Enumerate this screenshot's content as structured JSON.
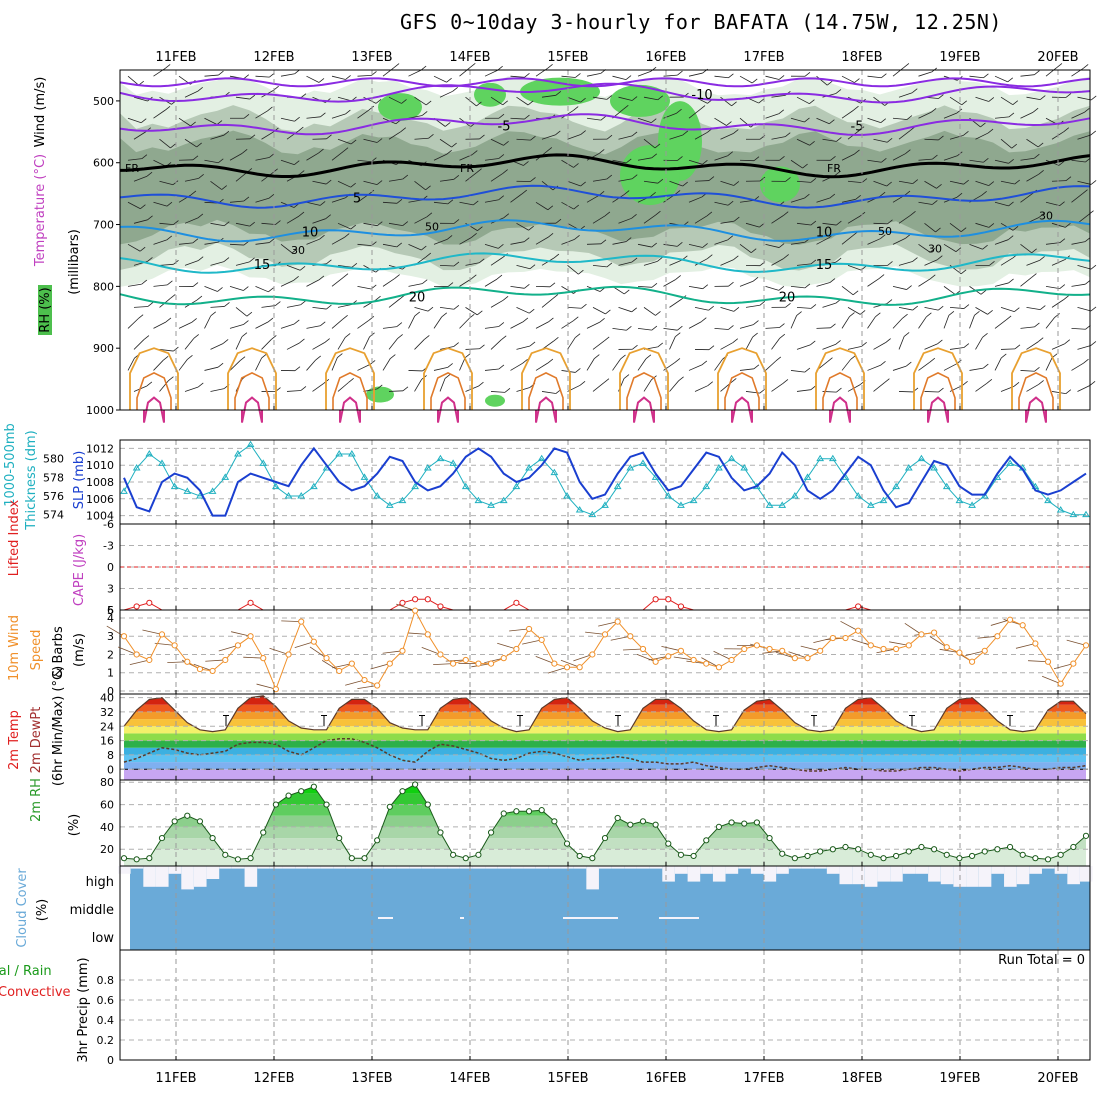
{
  "title": "GFS 0~10day 3-hourly for BAFATA (14.75W, 12.25N)",
  "dates": [
    "11FEB",
    "12FEB",
    "13FEB",
    "14FEB",
    "15FEB",
    "16FEB",
    "17FEB",
    "18FEB",
    "19FEB",
    "20FEB"
  ],
  "colors": {
    "temp_purple": "#8a2be2",
    "temp_black": "#000000",
    "temp_blue": "#1f4fd8",
    "temp_sky": "#1e8fe0",
    "temp_cyan": "#1fb8c8",
    "temp_teal": "#12b08a",
    "rh_light": "#e3f0e3",
    "rh_mid": "#b6c9b6",
    "rh_dark": "#8fa88f",
    "rh_green": "#5fd35f",
    "slp": "#1a3fd0",
    "thickness": "#1fb0c0",
    "lifted": "#e02020",
    "wind10": "#f0902a",
    "rh2m": "#2a9a2a",
    "cloud": "#6aaad8",
    "cloud_gap": "#f5f3fa",
    "cape_orange": "#e8a030",
    "cape_magenta": "#d0308a"
  },
  "chart_data": [
    {
      "panel": "upper-air",
      "type": "contour",
      "ylabels": [
        "Wind (m/s)",
        "Temperature (°C)",
        "RH (%)",
        "(millibars)"
      ],
      "yticks": [
        "500",
        "600",
        "700",
        "800",
        "900",
        "1000"
      ],
      "ylim": [
        1000,
        450
      ],
      "isotherms": [
        {
          "label": "-10",
          "level": 487
        },
        {
          "label": "-5",
          "level": 538
        },
        {
          "label": "FR",
          "level": 605
        },
        {
          "label": "5",
          "level": 655
        },
        {
          "label": "10",
          "level": 710
        },
        {
          "label": "15",
          "level": 762
        },
        {
          "label": "20",
          "level": 815
        }
      ],
      "rh_labels": [
        "30",
        "50"
      ]
    },
    {
      "panel": "pressure",
      "type": "line",
      "ylabels": [
        "1000-500mb",
        "Thickness (dm)",
        "SLP (mb)"
      ],
      "yticks_left": [
        "574",
        "576",
        "578",
        "580"
      ],
      "yticks_right": [
        "1004",
        "1006",
        "1008",
        "1010",
        "1012"
      ],
      "ylim_slp": [
        1003,
        1013
      ],
      "series": [
        {
          "name": "SLP (mb)",
          "values": [
            1008.5,
            1005,
            1004.5,
            1008,
            1009,
            1008.5,
            1007,
            1004,
            1004,
            1008,
            1009,
            1008.5,
            1008,
            1007.5,
            1010,
            1012,
            1010,
            1008,
            1007,
            1007.5,
            1009,
            1011,
            1010.5,
            1008,
            1007,
            1007.5,
            1009,
            1011,
            1012,
            1011,
            1009,
            1008,
            1008.5,
            1010,
            1012,
            1011.5,
            1008,
            1006,
            1006.5,
            1009,
            1011,
            1011.5,
            1009,
            1007,
            1007.5,
            1009.5,
            1011.5,
            1011,
            1008.5,
            1007,
            1007.5,
            1009,
            1011.5,
            1010,
            1007,
            1006,
            1007,
            1009,
            1011,
            1010,
            1007,
            1005,
            1005.5,
            1008,
            1010.5,
            1010,
            1007.5,
            1006.5,
            1006.5,
            1009,
            1011,
            1009.5,
            1007,
            1006.5,
            1007,
            1008,
            1009
          ]
        },
        {
          "name": "Thickness (dm)",
          "values": [
            576.5,
            579,
            580.5,
            579.5,
            577,
            576.5,
            576,
            576.5,
            578,
            580.5,
            581.5,
            579.5,
            577,
            576,
            576,
            577,
            579,
            580.5,
            580.5,
            578,
            576,
            575,
            575.5,
            577,
            579,
            580,
            579.5,
            577,
            575.5,
            575,
            575.5,
            577,
            579,
            580,
            578.5,
            576,
            574.5,
            574,
            575,
            577,
            579,
            579.5,
            578,
            576,
            575,
            575.5,
            577,
            579,
            580,
            579,
            577,
            575,
            575,
            576,
            578,
            580,
            580,
            578,
            576,
            575,
            575.5,
            577,
            579,
            580,
            579,
            577,
            575.5,
            575,
            576,
            578,
            579.5,
            579,
            577,
            575.5,
            574.5,
            574,
            574
          ]
        }
      ]
    },
    {
      "panel": "stability",
      "type": "line",
      "ylabels": [
        "Lifted Index",
        "CAPE (J/kg)"
      ],
      "yticks": [
        "-6",
        "-3",
        "0",
        "3",
        "6"
      ],
      "ylim": [
        -6,
        6
      ],
      "cape_tick": "5",
      "series": [
        {
          "name": "Lifted Index",
          "values": [
            6,
            5.5,
            5,
            6,
            6,
            6,
            6,
            6,
            6,
            6,
            5,
            6,
            6,
            6,
            6,
            6,
            6,
            6,
            6,
            6,
            6,
            6,
            5,
            4.5,
            4.5,
            5.5,
            6,
            6,
            6,
            6,
            6,
            5,
            6,
            6,
            6,
            6,
            6,
            6,
            6,
            6,
            6,
            6,
            4.5,
            4.5,
            5.5,
            6,
            6,
            6,
            6,
            6,
            6,
            6,
            6,
            6,
            6,
            6,
            6,
            6,
            5.5,
            6,
            6,
            6,
            6,
            6,
            6,
            6,
            6,
            6,
            6,
            6,
            6,
            6,
            6,
            6,
            6,
            6,
            6
          ]
        }
      ]
    },
    {
      "panel": "wind10m",
      "type": "line",
      "ylabels": [
        "10m Wind",
        "Speed",
        "& Barbs",
        "(m/s)"
      ],
      "yticks": [
        "0",
        "1",
        "2",
        "3",
        "4"
      ],
      "ylim": [
        0,
        4.6
      ],
      "series": [
        {
          "name": "10m Wind Speed",
          "values": [
            3,
            2,
            1.7,
            3.1,
            2.5,
            1.6,
            1.2,
            1.1,
            1.7,
            2.5,
            3,
            1.8,
            0.1,
            2,
            3.8,
            2.7,
            1.8,
            1.1,
            1.5,
            0.6,
            0.3,
            1.5,
            2.2,
            4.4,
            3.1,
            2,
            1.5,
            1.7,
            1.5,
            1.5,
            1.8,
            2.3,
            3.4,
            2.8,
            1.5,
            1.3,
            1.3,
            2,
            3.1,
            3.8,
            3,
            2.3,
            1.6,
            1.9,
            2.2,
            1.7,
            1.5,
            1.3,
            1.7,
            2.3,
            2.5,
            2.3,
            2.2,
            1.8,
            1.8,
            2.2,
            2.9,
            2.9,
            3.3,
            2.5,
            2.3,
            2.3,
            2.5,
            3.1,
            3.2,
            2.4,
            2.1,
            1.6,
            2.2,
            3,
            3.9,
            3.6,
            2.6,
            1.6,
            0.4,
            1.5,
            2.5
          ]
        }
      ]
    },
    {
      "panel": "temperature2m",
      "type": "area",
      "ylabels": [
        "2m Temp",
        "2m DewPt",
        "(6hr Min/Max) (°C)"
      ],
      "yticks": [
        "0",
        "8",
        "16",
        "24",
        "32",
        "40"
      ],
      "ylim": [
        -6,
        42
      ],
      "series": [
        {
          "name": "2m Temp",
          "values": [
            24,
            33,
            39,
            40,
            33,
            26,
            22,
            21,
            22,
            34,
            40,
            41,
            35,
            27,
            23,
            22,
            22,
            34,
            39,
            39,
            34,
            26,
            23,
            22,
            22,
            34,
            39,
            40,
            34,
            27,
            23,
            21,
            22,
            34,
            39,
            40,
            34,
            27,
            23,
            21,
            22,
            34,
            39,
            39,
            34,
            27,
            22,
            21,
            22,
            33,
            38,
            39,
            33,
            26,
            22,
            21,
            22,
            34,
            39,
            40,
            34,
            27,
            23,
            21,
            22,
            34,
            39,
            40,
            34,
            27,
            22,
            21,
            22,
            33,
            38,
            38,
            31
          ]
        },
        {
          "name": "2m DewPt",
          "values": [
            4,
            6,
            9,
            12,
            11,
            9,
            8,
            9,
            10,
            14,
            15,
            15,
            14,
            10,
            8,
            12,
            16,
            17,
            17,
            15,
            12,
            8,
            5,
            4,
            10,
            14,
            13,
            11,
            9,
            6,
            5,
            6,
            9,
            10,
            9,
            7,
            5,
            6,
            6,
            7,
            6,
            4,
            4,
            3,
            3,
            4,
            2,
            1,
            0,
            0,
            1,
            2,
            1,
            0,
            -1,
            -1,
            0,
            1,
            0,
            0,
            -1,
            -1,
            0,
            1,
            1,
            0,
            -1,
            0,
            1,
            1,
            2,
            1,
            0,
            0,
            1,
            1,
            2
          ]
        }
      ]
    },
    {
      "panel": "rh2m",
      "type": "area",
      "ylabels": [
        "2m RH",
        "(%)"
      ],
      "yticks": [
        "20",
        "40",
        "60",
        "80"
      ],
      "ylim": [
        5,
        82
      ],
      "series": [
        {
          "name": "2m RH",
          "values": [
            12,
            11,
            12,
            30,
            45,
            50,
            45,
            30,
            15,
            11,
            12,
            35,
            60,
            68,
            72,
            76,
            60,
            30,
            12,
            12,
            28,
            58,
            72,
            78,
            60,
            35,
            15,
            12,
            15,
            35,
            52,
            54,
            54,
            55,
            45,
            25,
            14,
            12,
            30,
            48,
            42,
            45,
            42,
            25,
            15,
            14,
            28,
            40,
            44,
            43,
            44,
            30,
            16,
            12,
            14,
            18,
            20,
            22,
            20,
            15,
            12,
            14,
            18,
            22,
            20,
            15,
            12,
            14,
            18,
            20,
            22,
            15,
            12,
            11,
            15,
            22,
            32
          ]
        }
      ]
    },
    {
      "panel": "cloud",
      "type": "bar",
      "ylabels": [
        "Cloud Cover",
        "(%)"
      ],
      "levels": [
        "high",
        "middle",
        "low"
      ],
      "high_missing": [
        0.3,
        0.1,
        0.8,
        0.8,
        0.3,
        0.9,
        0.8,
        0.5,
        0.1,
        0.1,
        0.8,
        0.1,
        0.1,
        0.1,
        0.1,
        0.1,
        0.1,
        0.1,
        0.1,
        0.1,
        0.1,
        0.1,
        0.1,
        0.1,
        0.1,
        0.1,
        0.1,
        0.1,
        0.1,
        0.1,
        0.1,
        0.1,
        0.1,
        0.1,
        0.1,
        0.1,
        0.1,
        0.9,
        0.1,
        0.1,
        0.1,
        0.1,
        0.1,
        0.6,
        0.3,
        0.6,
        0.3,
        0.6,
        0.3,
        0.1,
        0.3,
        0.6,
        0.3,
        0.1,
        0.1,
        0.1,
        0.3,
        0.7,
        0.7,
        0.8,
        0.6,
        0.6,
        0.3,
        0.3,
        0.6,
        0.7,
        0.8,
        0.8,
        0.8,
        0.3,
        0.8,
        0.7,
        0.3,
        0.1,
        0.3,
        0.7,
        0.6
      ]
    },
    {
      "panel": "precip",
      "type": "bar",
      "ylabels": [
        "Total / Rain",
        "Convective",
        "3hr Precip (mm)"
      ],
      "yticks": [
        "0",
        "0.2",
        "0.4",
        "0.6",
        "0.8"
      ],
      "ylim": [
        0,
        1
      ],
      "run_total": "Run Total = 0",
      "series": [
        {
          "name": "Total / Rain",
          "values": []
        },
        {
          "name": "Convective",
          "values": []
        }
      ]
    }
  ]
}
